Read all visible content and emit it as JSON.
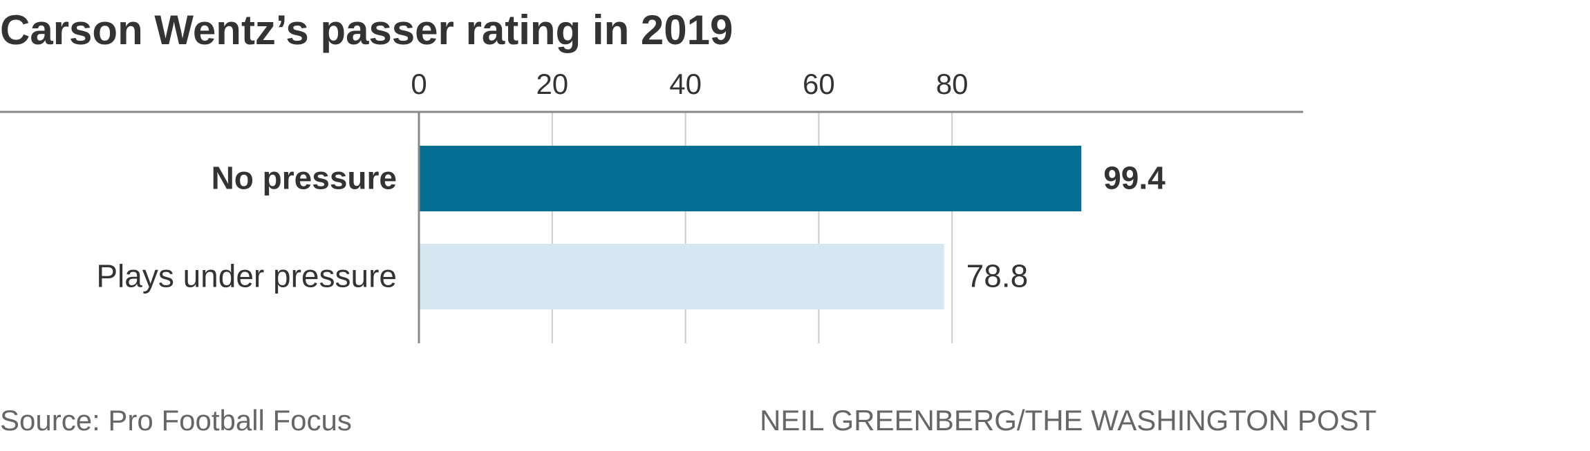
{
  "chart_data": {
    "type": "bar",
    "orientation": "horizontal",
    "title": "Carson Wentz’s passer rating in 2019",
    "categories": [
      "No pressure",
      "Plays under pressure"
    ],
    "values": [
      99.4,
      78.8
    ],
    "value_labels": [
      "99.4",
      "78.8"
    ],
    "category_bold": [
      true,
      false
    ],
    "colors": [
      "#046f93",
      "#d6e7f1"
    ],
    "x_ticks": [
      0,
      20,
      40,
      60,
      80
    ],
    "x_tick_labels": [
      "0",
      "20",
      "40",
      "60",
      "80"
    ],
    "xlim": [
      0,
      133
    ],
    "axis_position": "top",
    "grid": true,
    "xlabel": "",
    "ylabel": ""
  },
  "footer": {
    "source": "Source: Pro Football Focus",
    "credit": "NEIL GREENBERG/THE WASHINGTON POST"
  }
}
